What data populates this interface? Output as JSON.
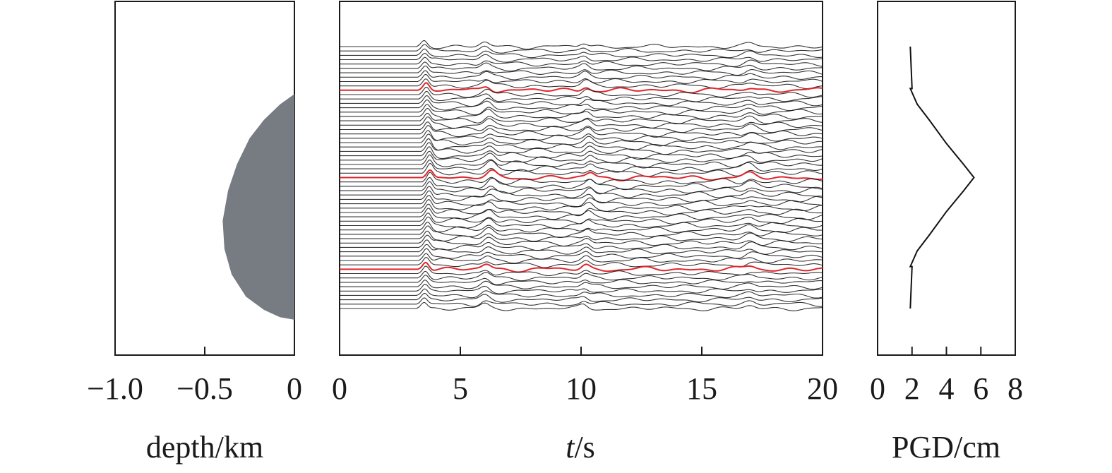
{
  "chart_data": [
    {
      "type": "area",
      "panel": "depth-profile",
      "xlabel": "depth/km",
      "xticks": [
        "−1.0",
        "−0.5",
        "0"
      ],
      "xlim": [
        -1.0,
        0
      ],
      "fill_color": "#777b82",
      "profile": [
        [
          0,
          0.262
        ],
        [
          -0.08,
          0.291
        ],
        [
          -0.17,
          0.335
        ],
        [
          -0.25,
          0.387
        ],
        [
          -0.32,
          0.46
        ],
        [
          -0.37,
          0.535
        ],
        [
          -0.4,
          0.62
        ],
        [
          -0.39,
          0.7
        ],
        [
          -0.35,
          0.772
        ],
        [
          -0.27,
          0.835
        ],
        [
          -0.17,
          0.872
        ],
        [
          -0.08,
          0.893
        ],
        [
          0,
          0.9
        ]
      ]
    },
    {
      "type": "line",
      "panel": "waveforms",
      "xlabel": "t/s",
      "xticks": [
        "0",
        "5",
        "10",
        "15",
        "20"
      ],
      "xlim": [
        0,
        20
      ],
      "trace_count": 61,
      "arrival_time": 3.4,
      "trace_color": "#111111",
      "highlight_color": "#e0262b",
      "highlight_traces": [
        10,
        30,
        51
      ]
    },
    {
      "type": "line",
      "panel": "pgd-profile",
      "xlabel": "PGD/cm",
      "xticks": [
        "0",
        "2",
        "4",
        "6",
        "8"
      ],
      "xlim": [
        0,
        8
      ],
      "line_color": "#111111",
      "values": [
        [
          1.9,
          0
        ],
        [
          2.0,
          0.16
        ],
        [
          1.9,
          0.16
        ],
        [
          2.3,
          0.22
        ],
        [
          3.0,
          0.28
        ],
        [
          4.0,
          0.37
        ],
        [
          5.0,
          0.45
        ],
        [
          5.6,
          0.5
        ],
        [
          5.0,
          0.55
        ],
        [
          4.0,
          0.63
        ],
        [
          3.0,
          0.72
        ],
        [
          2.3,
          0.78
        ],
        [
          1.9,
          0.84
        ],
        [
          2.0,
          0.84
        ],
        [
          1.9,
          1.0
        ]
      ]
    }
  ]
}
